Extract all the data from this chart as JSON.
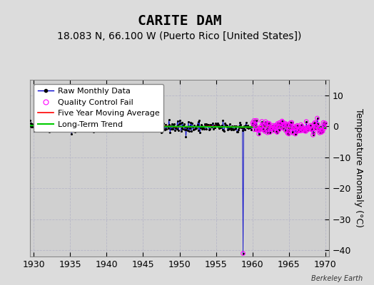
{
  "title": "CARITE DAM",
  "subtitle": "18.083 N, 66.100 W (Puerto Rico [United States])",
  "ylabel": "Temperature Anomaly (°C)",
  "watermark": "Berkeley Earth",
  "xlim": [
    1929.5,
    1970.5
  ],
  "ylim": [
    -42,
    15
  ],
  "xticks": [
    1930,
    1935,
    1940,
    1945,
    1950,
    1955,
    1960,
    1965,
    1970
  ],
  "yticks": [
    -40,
    -30,
    -20,
    -10,
    0,
    10
  ],
  "bg_color": "#dcdcdc",
  "plot_bg_color": "#d0d0d0",
  "grid_color": "#b8b8c8",
  "raw_line_color": "#0000cc",
  "raw_dot_color": "#000000",
  "qc_fail_color": "#ff00ff",
  "moving_avg_color": "#ff0000",
  "trend_color": "#00cc00",
  "spike_x": 1958.75,
  "spike_y": -41.0,
  "x_start": 1929,
  "x_end": 1970,
  "seed": 42,
  "qc_fail_start_year": 1960.0,
  "title_fontsize": 14,
  "subtitle_fontsize": 10,
  "label_fontsize": 9,
  "tick_fontsize": 9,
  "legend_fontsize": 8
}
